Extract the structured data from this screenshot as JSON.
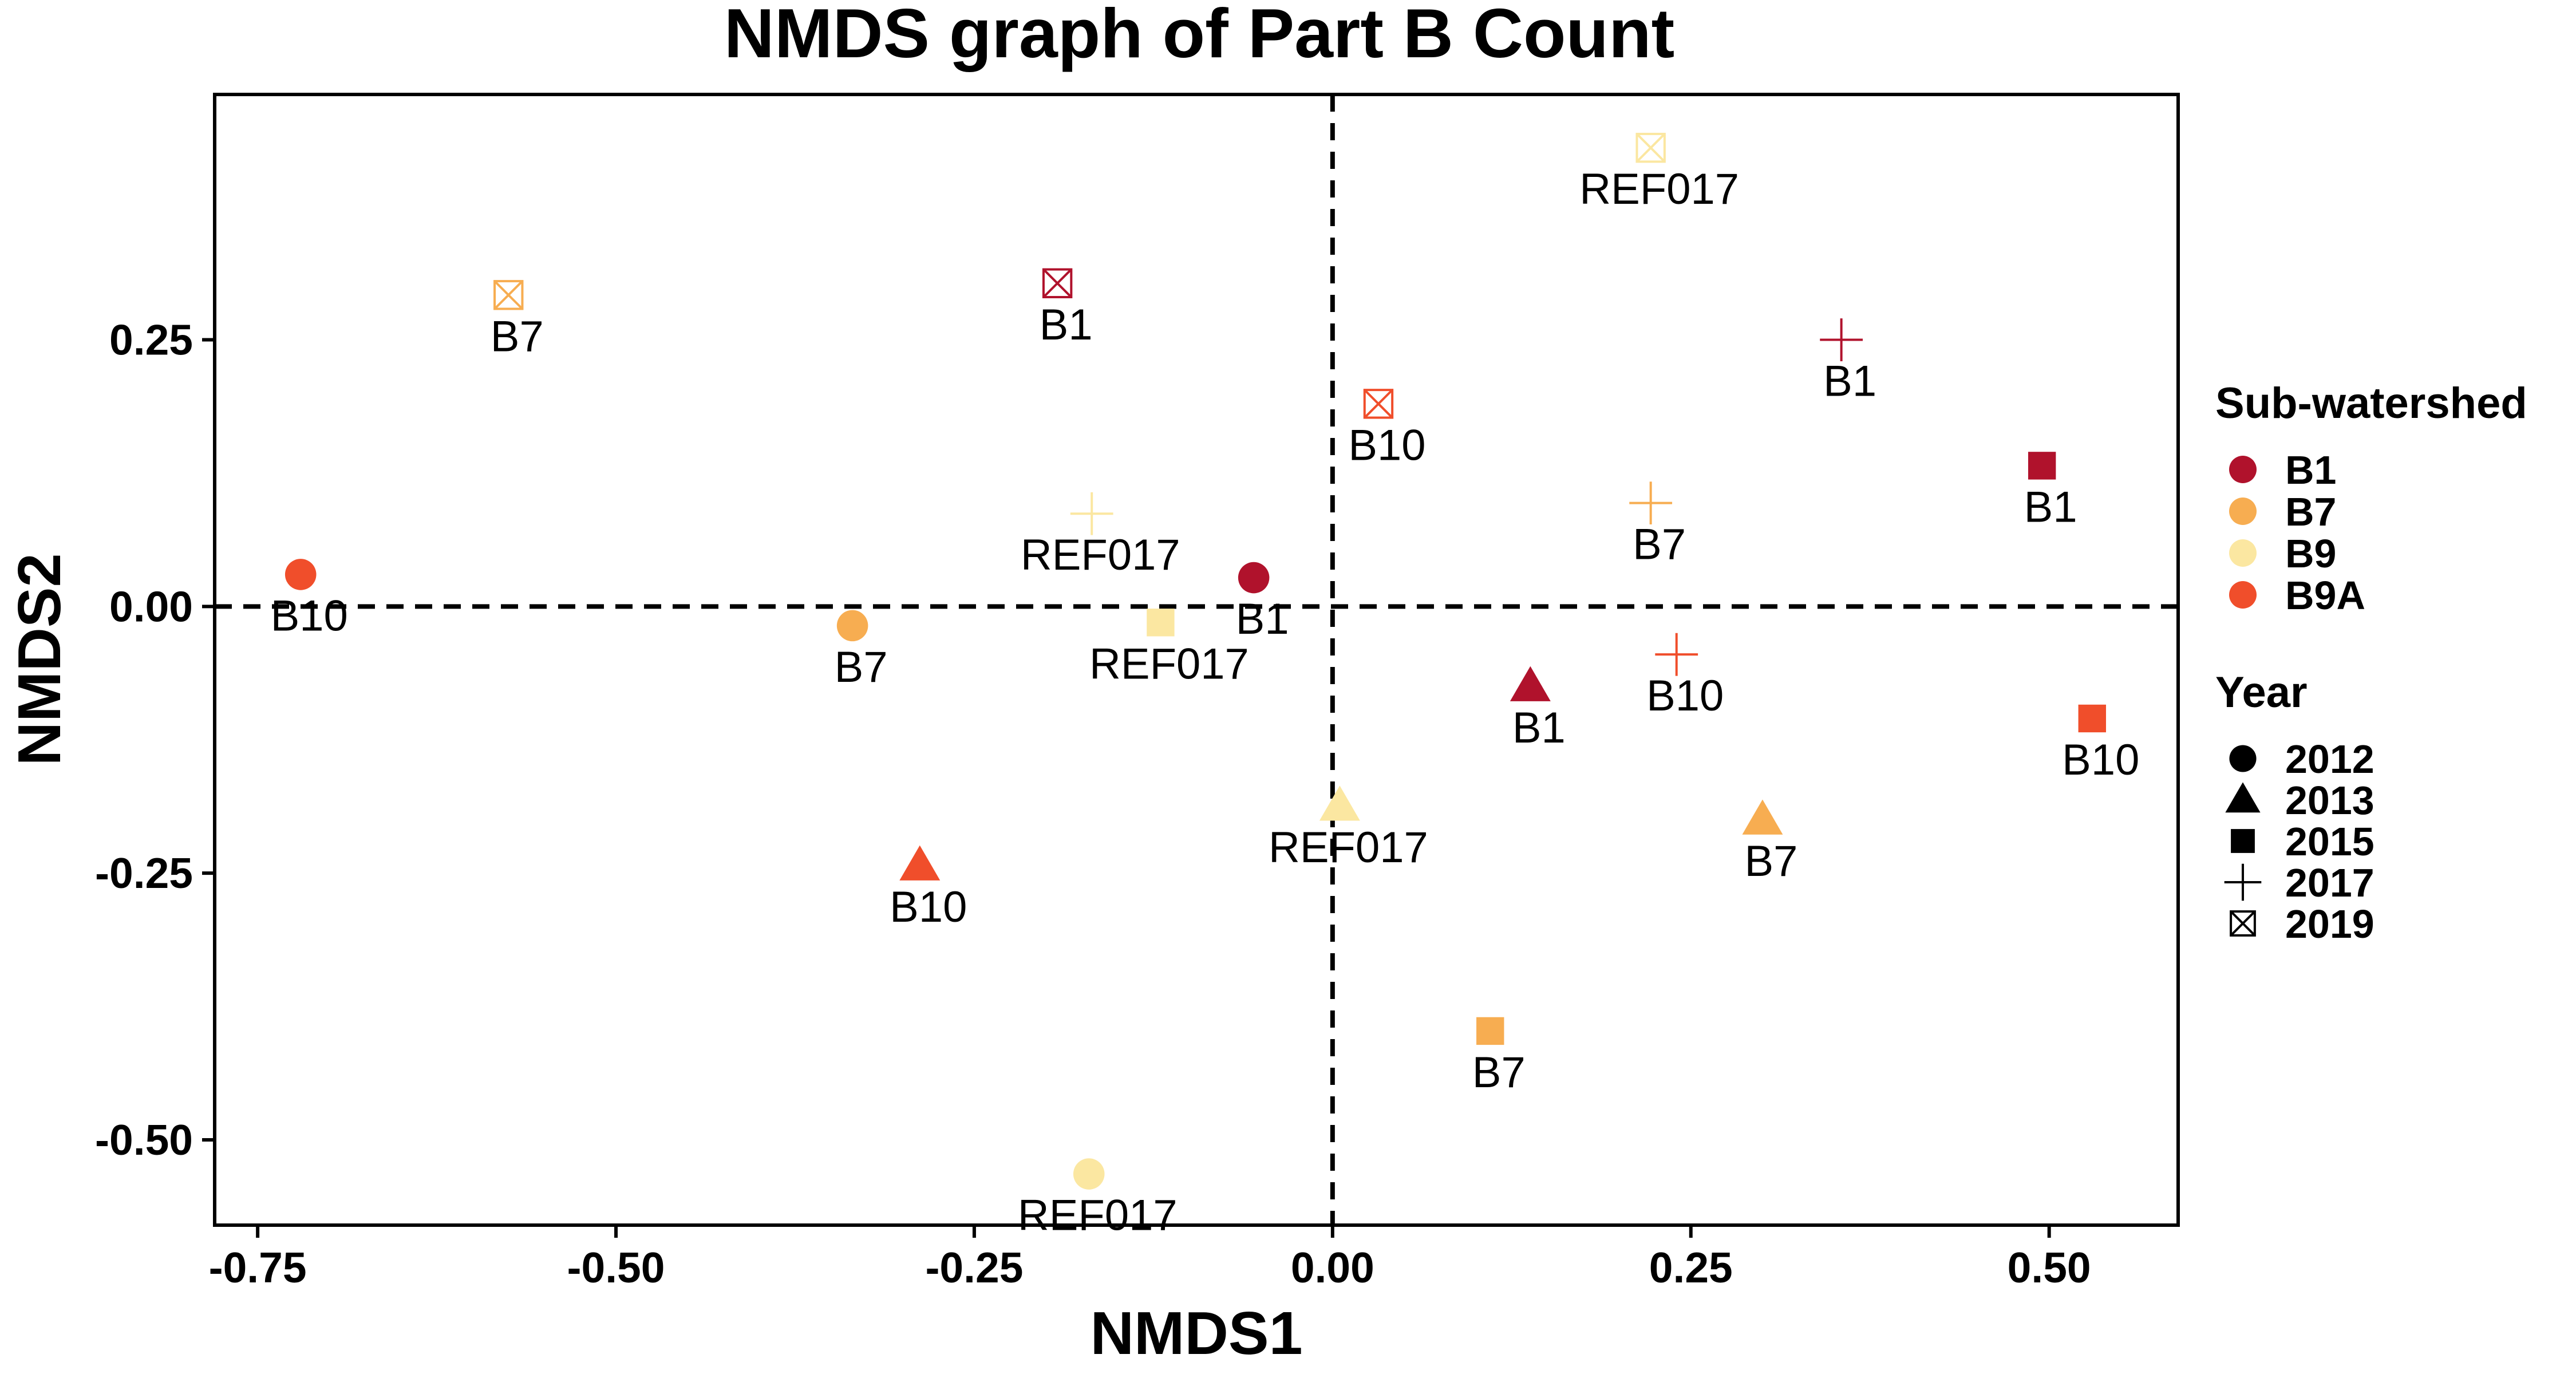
{
  "chart_data": {
    "type": "scatter",
    "title": "NMDS graph of Part B Count",
    "xlabel": "NMDS1",
    "ylabel": "NMDS2",
    "xlim": [
      -0.78,
      0.59
    ],
    "ylim": [
      -0.58,
      0.48
    ],
    "xticks": [
      -0.75,
      -0.5,
      -0.25,
      0.0,
      0.25,
      0.5
    ],
    "xtick_labels": [
      "-0.75",
      "-0.50",
      "-0.25",
      "0.00",
      "0.25",
      "0.50"
    ],
    "yticks": [
      -0.5,
      -0.25,
      0.0,
      0.25
    ],
    "ytick_labels": [
      "-0.50",
      "-0.25",
      "0.00",
      "0.25"
    ],
    "reference_lines": {
      "x": 0,
      "y": 0,
      "style": "dashed"
    },
    "grid": false,
    "legend": {
      "placement": "right",
      "color_title": "Sub-watershed",
      "color_entries": [
        {
          "label": "B1",
          "color": "#b0122c"
        },
        {
          "label": "B7",
          "color": "#f7ad51"
        },
        {
          "label": "B9",
          "color": "#fbe7a1"
        },
        {
          "label": "B9A",
          "color": "#f04e2b"
        }
      ],
      "shape_title": "Year",
      "shape_entries": [
        {
          "label": "2012",
          "shape": "circle"
        },
        {
          "label": "2013",
          "shape": "triangle"
        },
        {
          "label": "2015",
          "shape": "square"
        },
        {
          "label": "2017",
          "shape": "plus"
        },
        {
          "label": "2019",
          "shape": "square-x"
        }
      ]
    },
    "points": [
      {
        "x": -0.055,
        "y": 0.027,
        "group": "B1",
        "year": "2012",
        "label": "B1"
      },
      {
        "x": -0.335,
        "y": -0.018,
        "group": "B7",
        "year": "2012",
        "label": "B7"
      },
      {
        "x": -0.17,
        "y": -0.532,
        "group": "B9",
        "year": "2012",
        "label": "REF017"
      },
      {
        "x": -0.72,
        "y": 0.03,
        "group": "B9A",
        "year": "2012",
        "label": "B10"
      },
      {
        "x": 0.138,
        "y": -0.075,
        "group": "B1",
        "year": "2013",
        "label": "B1"
      },
      {
        "x": 0.3,
        "y": -0.2,
        "group": "B7",
        "year": "2013",
        "label": "B7"
      },
      {
        "x": 0.005,
        "y": -0.187,
        "group": "B9",
        "year": "2013",
        "label": "REF017"
      },
      {
        "x": -0.288,
        "y": -0.243,
        "group": "B9A",
        "year": "2013",
        "label": "B10"
      },
      {
        "x": 0.495,
        "y": 0.132,
        "group": "B1",
        "year": "2015",
        "label": "B1"
      },
      {
        "x": 0.11,
        "y": -0.398,
        "group": "B7",
        "year": "2015",
        "label": "B7"
      },
      {
        "x": -0.12,
        "y": -0.015,
        "group": "B9",
        "year": "2015",
        "label": "REF017"
      },
      {
        "x": 0.53,
        "y": -0.105,
        "group": "B9A",
        "year": "2015",
        "label": "B10"
      },
      {
        "x": 0.355,
        "y": 0.25,
        "group": "B1",
        "year": "2017",
        "label": "B1"
      },
      {
        "x": 0.222,
        "y": 0.097,
        "group": "B7",
        "year": "2017",
        "label": "B7"
      },
      {
        "x": -0.168,
        "y": 0.087,
        "group": "B9",
        "year": "2017",
        "label": "REF017"
      },
      {
        "x": 0.24,
        "y": -0.045,
        "group": "B9A",
        "year": "2017",
        "label": "B10"
      },
      {
        "x": -0.192,
        "y": 0.303,
        "group": "B1",
        "year": "2019",
        "label": "B1"
      },
      {
        "x": -0.575,
        "y": 0.292,
        "group": "B7",
        "year": "2019",
        "label": "B7"
      },
      {
        "x": 0.222,
        "y": 0.43,
        "group": "B9",
        "year": "2019",
        "label": "REF017"
      },
      {
        "x": 0.032,
        "y": 0.19,
        "group": "B9A",
        "year": "2019",
        "label": "B10"
      }
    ]
  }
}
